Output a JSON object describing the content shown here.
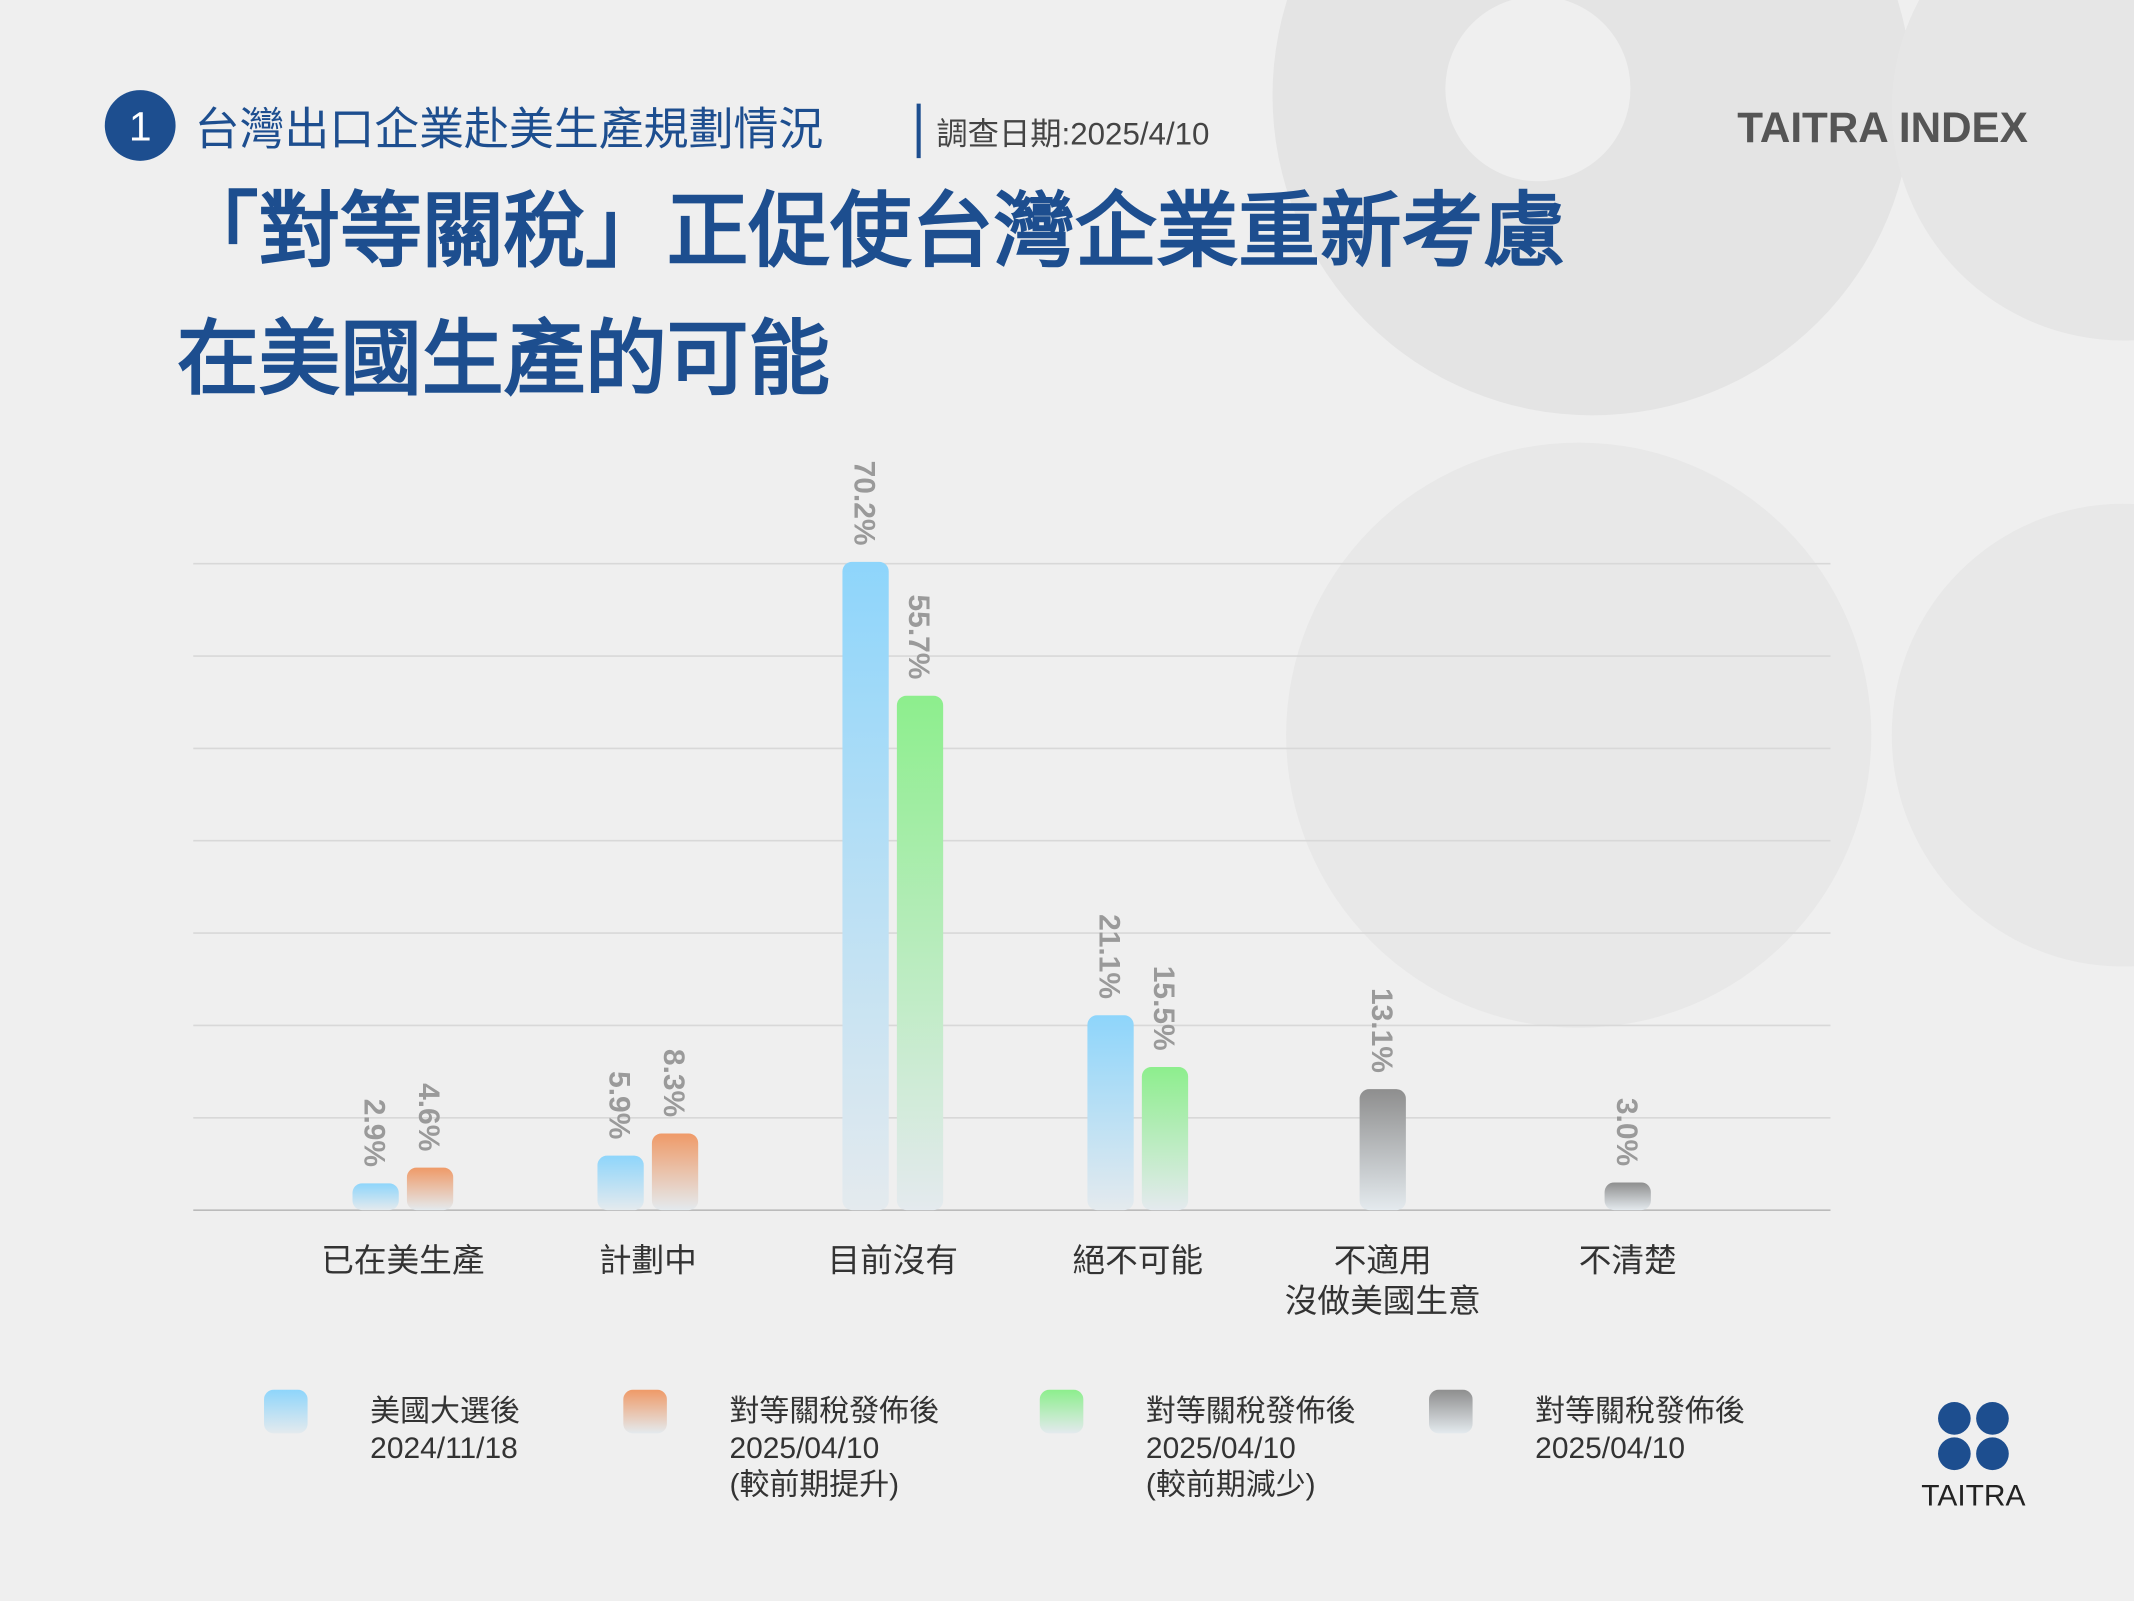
{
  "header": {
    "badge": "1",
    "subtitle": "台灣出口企業赴美生產規劃情況",
    "date": "調查日期:2025/4/10",
    "brand": "TAITRA INDEX",
    "logo": "TAITRA"
  },
  "chart_data": {
    "type": "bar",
    "title": [
      "「對等關稅」正促使台灣企業重新考慮",
      "在美國生產的可能"
    ],
    "categories": [
      "已在美生產",
      "計劃中",
      "目前沒有",
      "絕不可能",
      "不適用\n沒做美國生意",
      "不清楚"
    ],
    "series": [
      {
        "name": "美國大選後\n2024/11/18",
        "color": "#8ed5fb",
        "values": [
          2.9,
          5.9,
          70.2,
          21.1,
          null,
          null
        ],
        "value_labels": [
          "2.9%",
          "5.9%",
          "70.2%",
          "21.1%",
          null,
          null
        ]
      },
      {
        "name": "對等關稅發佈後\n2025/04/10\n(較前期提升)",
        "color": "#ef9a68",
        "values": [
          4.6,
          8.3,
          null,
          null,
          null,
          null
        ],
        "value_labels": [
          "4.6%",
          "8.3%",
          null,
          null,
          null,
          null
        ]
      },
      {
        "name": "對等關稅發佈後\n2025/04/10\n(較前期減少)",
        "color": "#8dee8d",
        "values": [
          null,
          null,
          55.7,
          15.5,
          null,
          null
        ],
        "value_labels": [
          null,
          null,
          "55.7%",
          "15.5%",
          null,
          null
        ]
      },
      {
        "name": "對等關稅發佈後\n2025/04/10",
        "color": "#8e8e8e",
        "values": [
          null,
          null,
          null,
          null,
          13.1,
          3.0
        ],
        "value_labels": [
          null,
          null,
          null,
          null,
          "13.1%",
          "3.0%"
        ]
      }
    ],
    "ylim": [
      0,
      70
    ],
    "yticks": [
      0,
      10,
      20,
      30,
      40,
      50,
      60,
      70
    ],
    "grid": true
  }
}
